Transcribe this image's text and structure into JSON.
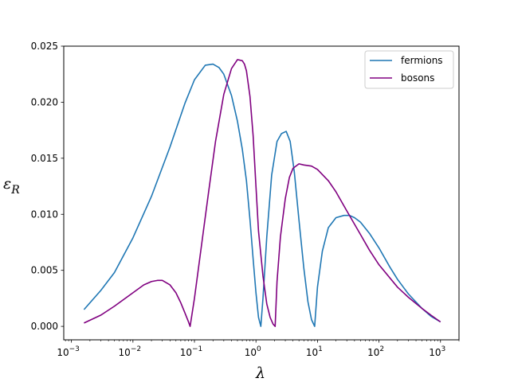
{
  "chart_data": {
    "type": "line",
    "xscale": "log",
    "xlim": [
      0.00075,
      2000
    ],
    "ylim": [
      -0.0012,
      0.025
    ],
    "xticks": [
      {
        "value": 0.001,
        "base": "10",
        "exp": "−3"
      },
      {
        "value": 0.01,
        "base": "10",
        "exp": "−2"
      },
      {
        "value": 0.1,
        "base": "10",
        "exp": "−1"
      },
      {
        "value": 1,
        "base": "10",
        "exp": "0"
      },
      {
        "value": 10,
        "base": "10",
        "exp": "1"
      },
      {
        "value": 100,
        "base": "10",
        "exp": "2"
      },
      {
        "value": 1000,
        "base": "10",
        "exp": "3"
      }
    ],
    "yticks": [
      {
        "value": 0.0,
        "label": "0.000"
      },
      {
        "value": 0.005,
        "label": "0.005"
      },
      {
        "value": 0.01,
        "label": "0.010"
      },
      {
        "value": 0.015,
        "label": "0.015"
      },
      {
        "value": 0.02,
        "label": "0.020"
      },
      {
        "value": 0.025,
        "label": "0.025"
      }
    ],
    "xlabel": "λ",
    "ylabel_main": "ε",
    "ylabel_sub": "R",
    "grid": false,
    "legend_position": "top-right",
    "series": [
      {
        "name": "fermions",
        "color": "#1f77b4",
        "x": [
          0.0016,
          0.003,
          0.005,
          0.01,
          0.02,
          0.04,
          0.07,
          0.1,
          0.15,
          0.2,
          0.25,
          0.3,
          0.4,
          0.5,
          0.6,
          0.7,
          0.8,
          0.9,
          1.0,
          1.1,
          1.2,
          1.3,
          1.5,
          1.8,
          2.2,
          2.6,
          3.1,
          3.6,
          4.2,
          5.0,
          6.0,
          7.0,
          8.0,
          9.0,
          10,
          12,
          15,
          20,
          27,
          33,
          40,
          50,
          70,
          100,
          150,
          200,
          300,
          500,
          700,
          1000
        ],
        "y": [
          0.0015,
          0.0032,
          0.0048,
          0.0079,
          0.0116,
          0.016,
          0.0199,
          0.022,
          0.0233,
          0.0234,
          0.0231,
          0.0225,
          0.0206,
          0.0183,
          0.0158,
          0.013,
          0.0095,
          0.006,
          0.003,
          0.0008,
          0.0,
          0.0025,
          0.008,
          0.0135,
          0.0165,
          0.0172,
          0.0174,
          0.0165,
          0.0138,
          0.0095,
          0.0052,
          0.0022,
          0.0006,
          0.0,
          0.0035,
          0.0067,
          0.0088,
          0.0097,
          0.0099,
          0.0099,
          0.0097,
          0.0093,
          0.0083,
          0.007,
          0.0053,
          0.0042,
          0.0029,
          0.0016,
          0.0009,
          0.0004
        ]
      },
      {
        "name": "bosons",
        "color": "#800080",
        "x": [
          0.0016,
          0.003,
          0.005,
          0.01,
          0.015,
          0.02,
          0.025,
          0.03,
          0.04,
          0.05,
          0.06,
          0.07,
          0.08,
          0.085,
          0.1,
          0.13,
          0.17,
          0.22,
          0.3,
          0.4,
          0.5,
          0.6,
          0.65,
          0.7,
          0.8,
          0.9,
          1.0,
          1.1,
          1.3,
          1.5,
          1.7,
          1.9,
          2.05,
          2.2,
          2.5,
          3.0,
          3.5,
          4.0,
          5.0,
          6.0,
          8.0,
          10,
          15,
          20,
          30,
          50,
          70,
          100,
          200,
          300,
          500,
          700,
          1000
        ],
        "y": [
          0.0003,
          0.001,
          0.0018,
          0.003,
          0.0037,
          0.004,
          0.0041,
          0.0041,
          0.0037,
          0.003,
          0.0021,
          0.0012,
          0.0004,
          0.0,
          0.0025,
          0.0072,
          0.012,
          0.0165,
          0.0207,
          0.023,
          0.0238,
          0.0237,
          0.0234,
          0.0228,
          0.0205,
          0.017,
          0.0125,
          0.0085,
          0.0045,
          0.002,
          0.0008,
          0.0002,
          0.0,
          0.004,
          0.008,
          0.0114,
          0.0133,
          0.0141,
          0.0145,
          0.0144,
          0.0143,
          0.014,
          0.013,
          0.012,
          0.0103,
          0.0082,
          0.0068,
          0.0055,
          0.0035,
          0.0026,
          0.0016,
          0.001,
          0.0004
        ]
      }
    ]
  }
}
